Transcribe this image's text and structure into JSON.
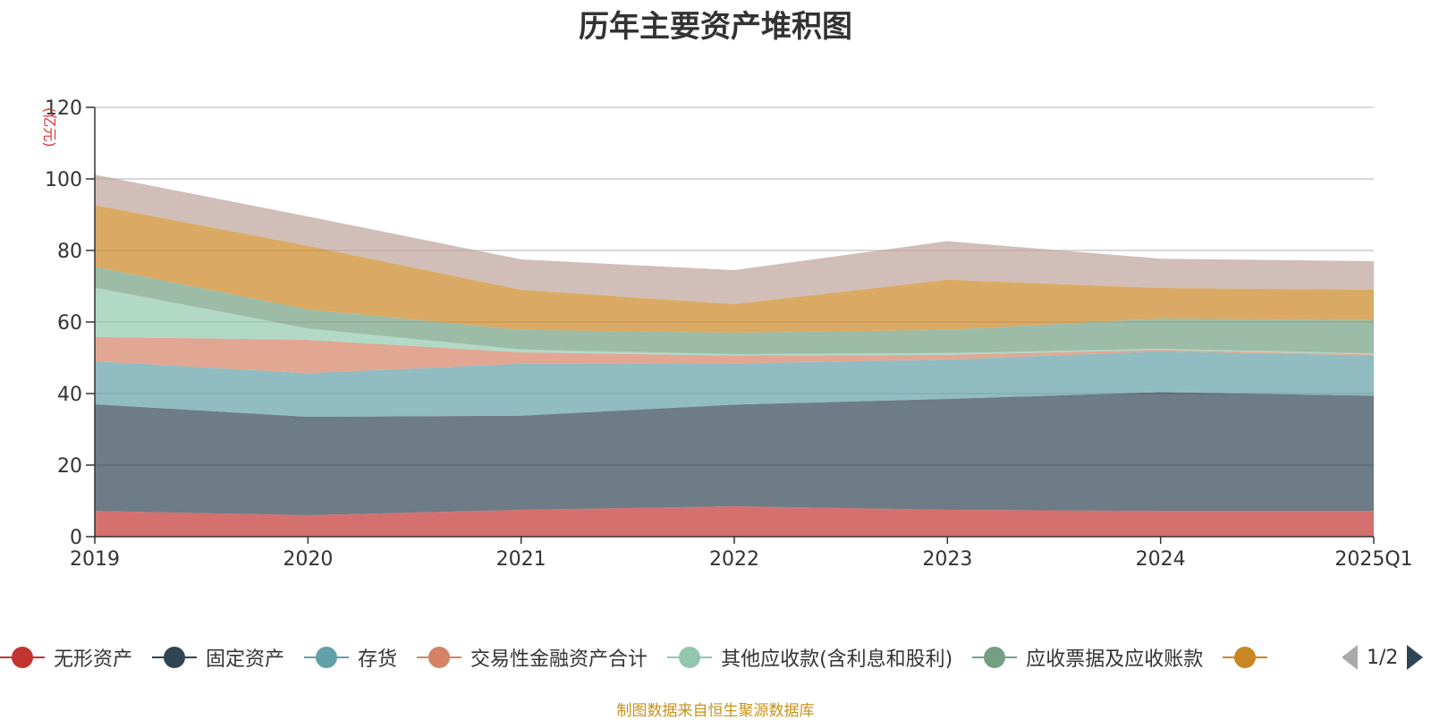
{
  "chart_data": {
    "type": "area",
    "title": "历年主要资产堆积图",
    "y_unit": "(亿元)",
    "categories": [
      "2019",
      "2020",
      "2021",
      "2022",
      "2023",
      "2024",
      "2025Q1"
    ],
    "ylim": [
      0,
      120
    ],
    "y_ticks": [
      0,
      20,
      40,
      60,
      80,
      100,
      120
    ],
    "stacked": true,
    "grid": true,
    "legend_position": "bottom",
    "series": [
      {
        "name": "无形资产",
        "color": "#c23531",
        "values": [
          7.2,
          6.0,
          7.5,
          8.5,
          7.5,
          7.2,
          7.2
        ]
      },
      {
        "name": "固定资产",
        "color": "#2f4554",
        "values": [
          29.8,
          27.5,
          26.3,
          28.4,
          31.0,
          33.2,
          32.2
        ]
      },
      {
        "name": "存货",
        "color": "#61a0a8",
        "values": [
          12.0,
          12.2,
          14.5,
          11.5,
          11.0,
          11.4,
          11.2
        ]
      },
      {
        "name": "交易性金融资产合计",
        "color": "#d48265",
        "values": [
          6.8,
          9.3,
          3.2,
          2.2,
          1.3,
          0.4,
          0.3
        ]
      },
      {
        "name": "其他应收款(含利息和股利)",
        "color": "#91c7ae",
        "values": [
          13.8,
          3.2,
          0.8,
          0.4,
          0.5,
          0.3,
          0.3
        ]
      },
      {
        "name": "应收票据及应收账款",
        "color": "#749f83",
        "values": [
          5.8,
          5.3,
          5.5,
          6.0,
          6.5,
          8.5,
          9.3
        ]
      },
      {
        "name": "",
        "color": "#ca8622",
        "values": [
          17.3,
          17.8,
          11.2,
          8.0,
          14.0,
          8.5,
          8.5
        ]
      },
      {
        "name": "",
        "color": "#bda29a",
        "values": [
          8.5,
          8.2,
          8.5,
          9.5,
          10.8,
          8.2,
          8.0
        ]
      }
    ]
  },
  "legend": {
    "pager_text": "1/2"
  },
  "source_note": "制图数据来自恒生聚源数据库"
}
